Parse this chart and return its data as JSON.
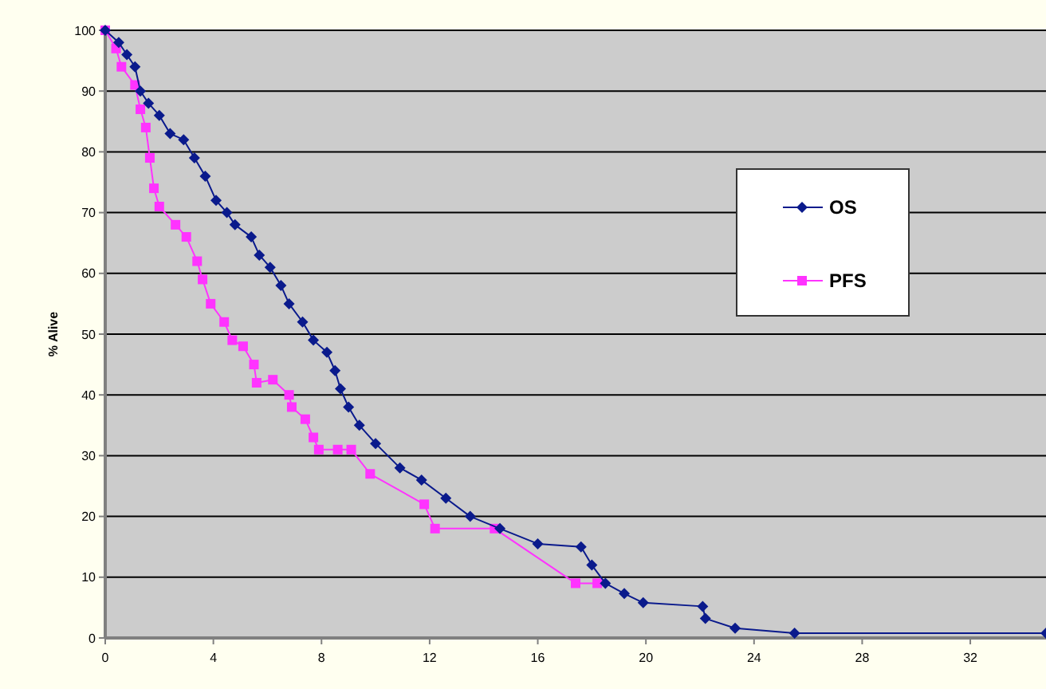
{
  "chart_data": {
    "type": "line",
    "ylabel": "% Alive",
    "xlim": [
      0,
      34.8
    ],
    "ylim": [
      0,
      100
    ],
    "xticks": [
      0,
      4,
      8,
      12,
      16,
      20,
      24,
      28,
      32
    ],
    "yticks": [
      0,
      10,
      20,
      30,
      40,
      50,
      60,
      70,
      80,
      90,
      100
    ],
    "grid": "y",
    "legend": "right",
    "series": [
      {
        "name": "OS",
        "color": "#0a1a8c",
        "marker": "diamond",
        "x": [
          0,
          0.5,
          0.8,
          1.1,
          1.3,
          1.6,
          2.0,
          2.4,
          2.9,
          3.3,
          3.7,
          4.1,
          4.5,
          4.8,
          5.4,
          5.7,
          6.1,
          6.5,
          6.8,
          7.3,
          7.7,
          8.2,
          8.5,
          8.7,
          9.0,
          9.4,
          10.0,
          10.9,
          11.7,
          12.6,
          13.5,
          14.6,
          16.0,
          17.6,
          18.0,
          18.5,
          19.2,
          19.9,
          22.1,
          22.2,
          23.3,
          25.5,
          34.8
        ],
        "values": [
          100,
          98,
          96,
          94,
          90,
          88,
          86,
          83,
          82,
          79,
          76,
          72,
          70,
          68,
          66,
          63,
          61,
          58,
          55,
          52,
          49,
          47,
          44,
          41,
          38,
          35,
          32,
          28,
          26,
          23,
          20,
          18,
          15.5,
          15,
          12,
          9,
          7.3,
          5.8,
          5.2,
          3.2,
          1.6,
          0.8,
          0.8
        ]
      },
      {
        "name": "PFS",
        "color": "#ff33ff",
        "marker": "square",
        "x": [
          0,
          0.4,
          0.6,
          1.1,
          1.3,
          1.5,
          1.65,
          1.8,
          2.0,
          2.6,
          3.0,
          3.4,
          3.6,
          3.9,
          4.4,
          4.7,
          5.1,
          5.5,
          5.6,
          6.2,
          6.8,
          6.9,
          7.4,
          7.7,
          7.9,
          8.6,
          9.1,
          9.8,
          11.8,
          12.2,
          14.4,
          17.4,
          18.2
        ],
        "values": [
          100,
          97,
          94,
          91,
          87,
          84,
          79,
          74,
          71,
          68,
          66,
          62,
          59,
          55,
          52,
          49,
          48,
          45,
          42,
          42.5,
          40,
          38,
          36,
          33,
          31,
          31,
          31,
          27,
          22,
          18,
          18,
          9,
          9
        ]
      }
    ]
  }
}
